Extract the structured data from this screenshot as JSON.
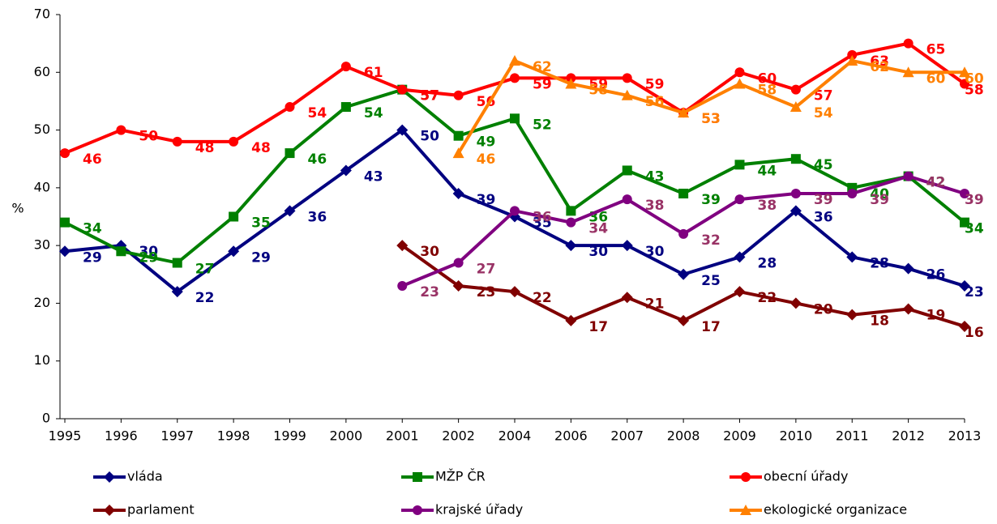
{
  "chart_data": {
    "type": "line",
    "categories": [
      "1995",
      "1996",
      "1997",
      "1998",
      "1999",
      "2000",
      "2001",
      "2002",
      "2004",
      "2006",
      "2007",
      "2008",
      "2009",
      "2010",
      "2011",
      "2012",
      "2013"
    ],
    "y_label": "%",
    "ylim": [
      0,
      70
    ],
    "yticks": [
      0,
      10,
      20,
      30,
      40,
      50,
      60,
      70
    ],
    "series": [
      {
        "name": "vláda",
        "color": "#000080",
        "label_color": "#000080",
        "marker": "diamond",
        "values": [
          29,
          30,
          22,
          29,
          36,
          43,
          50,
          39,
          35,
          30,
          30,
          25,
          28,
          36,
          28,
          26,
          23
        ]
      },
      {
        "name": "MŽP ČR",
        "color": "#008000",
        "label_color": "#008000",
        "marker": "square",
        "values": [
          34,
          29,
          27,
          35,
          46,
          54,
          57,
          49,
          52,
          36,
          43,
          39,
          44,
          45,
          40,
          42,
          34
        ]
      },
      {
        "name": "obecní úřady",
        "color": "#ff0000",
        "label_color": "#ff0000",
        "marker": "circle",
        "values": [
          46,
          50,
          48,
          48,
          54,
          61,
          57,
          56,
          59,
          59,
          59,
          53,
          60,
          57,
          63,
          65,
          58
        ]
      },
      {
        "name": "parlament",
        "color": "#800000",
        "label_color": "#800000",
        "marker": "diamond",
        "values": [
          null,
          null,
          null,
          null,
          null,
          null,
          30,
          23,
          22,
          17,
          21,
          17,
          22,
          20,
          18,
          19,
          16
        ]
      },
      {
        "name": "krajské úřady",
        "color": "#800080",
        "label_color": "#993366",
        "marker": "circle",
        "values": [
          null,
          null,
          null,
          null,
          null,
          null,
          23,
          27,
          36,
          34,
          38,
          32,
          38,
          39,
          39,
          42,
          39
        ]
      },
      {
        "name": "ekologické organizace",
        "color": "#ff8000",
        "label_color": "#ff8000",
        "marker": "triangle",
        "values": [
          null,
          null,
          null,
          null,
          null,
          null,
          null,
          46,
          62,
          58,
          56,
          53,
          58,
          54,
          62,
          60,
          60
        ]
      }
    ]
  }
}
